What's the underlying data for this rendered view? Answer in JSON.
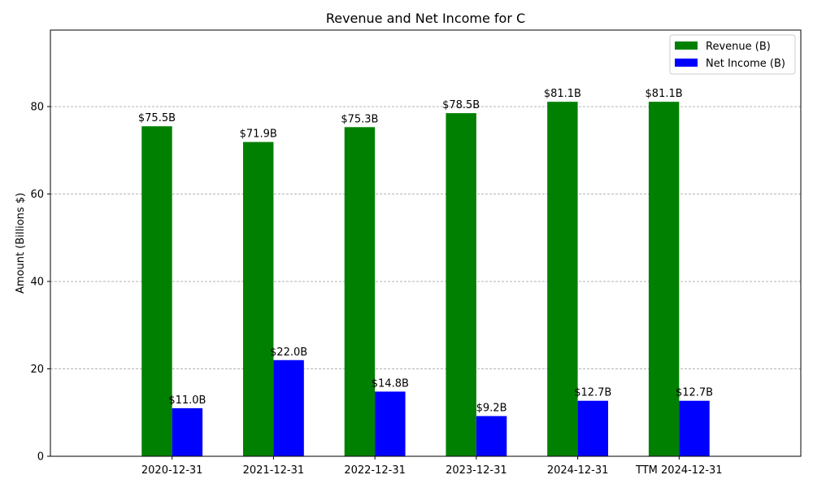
{
  "chart_data": {
    "type": "bar",
    "title": "Revenue and Net Income for C",
    "xlabel": "",
    "ylabel": "Amount (Billions $)",
    "ylim": [
      0,
      97.5
    ],
    "yticks": [
      0,
      20,
      40,
      60,
      80
    ],
    "grid": true,
    "legend_position": "top-right",
    "categories": [
      "2020-12-31",
      "2021-12-31",
      "2022-12-31",
      "2023-12-31",
      "2024-12-31",
      "TTM 2024-12-31"
    ],
    "series": [
      {
        "name": "Revenue (B)",
        "color": "#008000",
        "values": [
          75.5,
          71.9,
          75.3,
          78.5,
          81.1,
          81.1
        ],
        "labels": [
          "$75.5B",
          "$71.9B",
          "$75.3B",
          "$78.5B",
          "$81.1B",
          "$81.1B"
        ]
      },
      {
        "name": "Net Income (B)",
        "color": "#0000ff",
        "values": [
          11.0,
          22.0,
          14.8,
          9.2,
          12.7,
          12.7
        ],
        "labels": [
          "$11.0B",
          "$22.0B",
          "$14.8B",
          "$9.2B",
          "$12.7B",
          "$12.7B"
        ]
      }
    ]
  }
}
